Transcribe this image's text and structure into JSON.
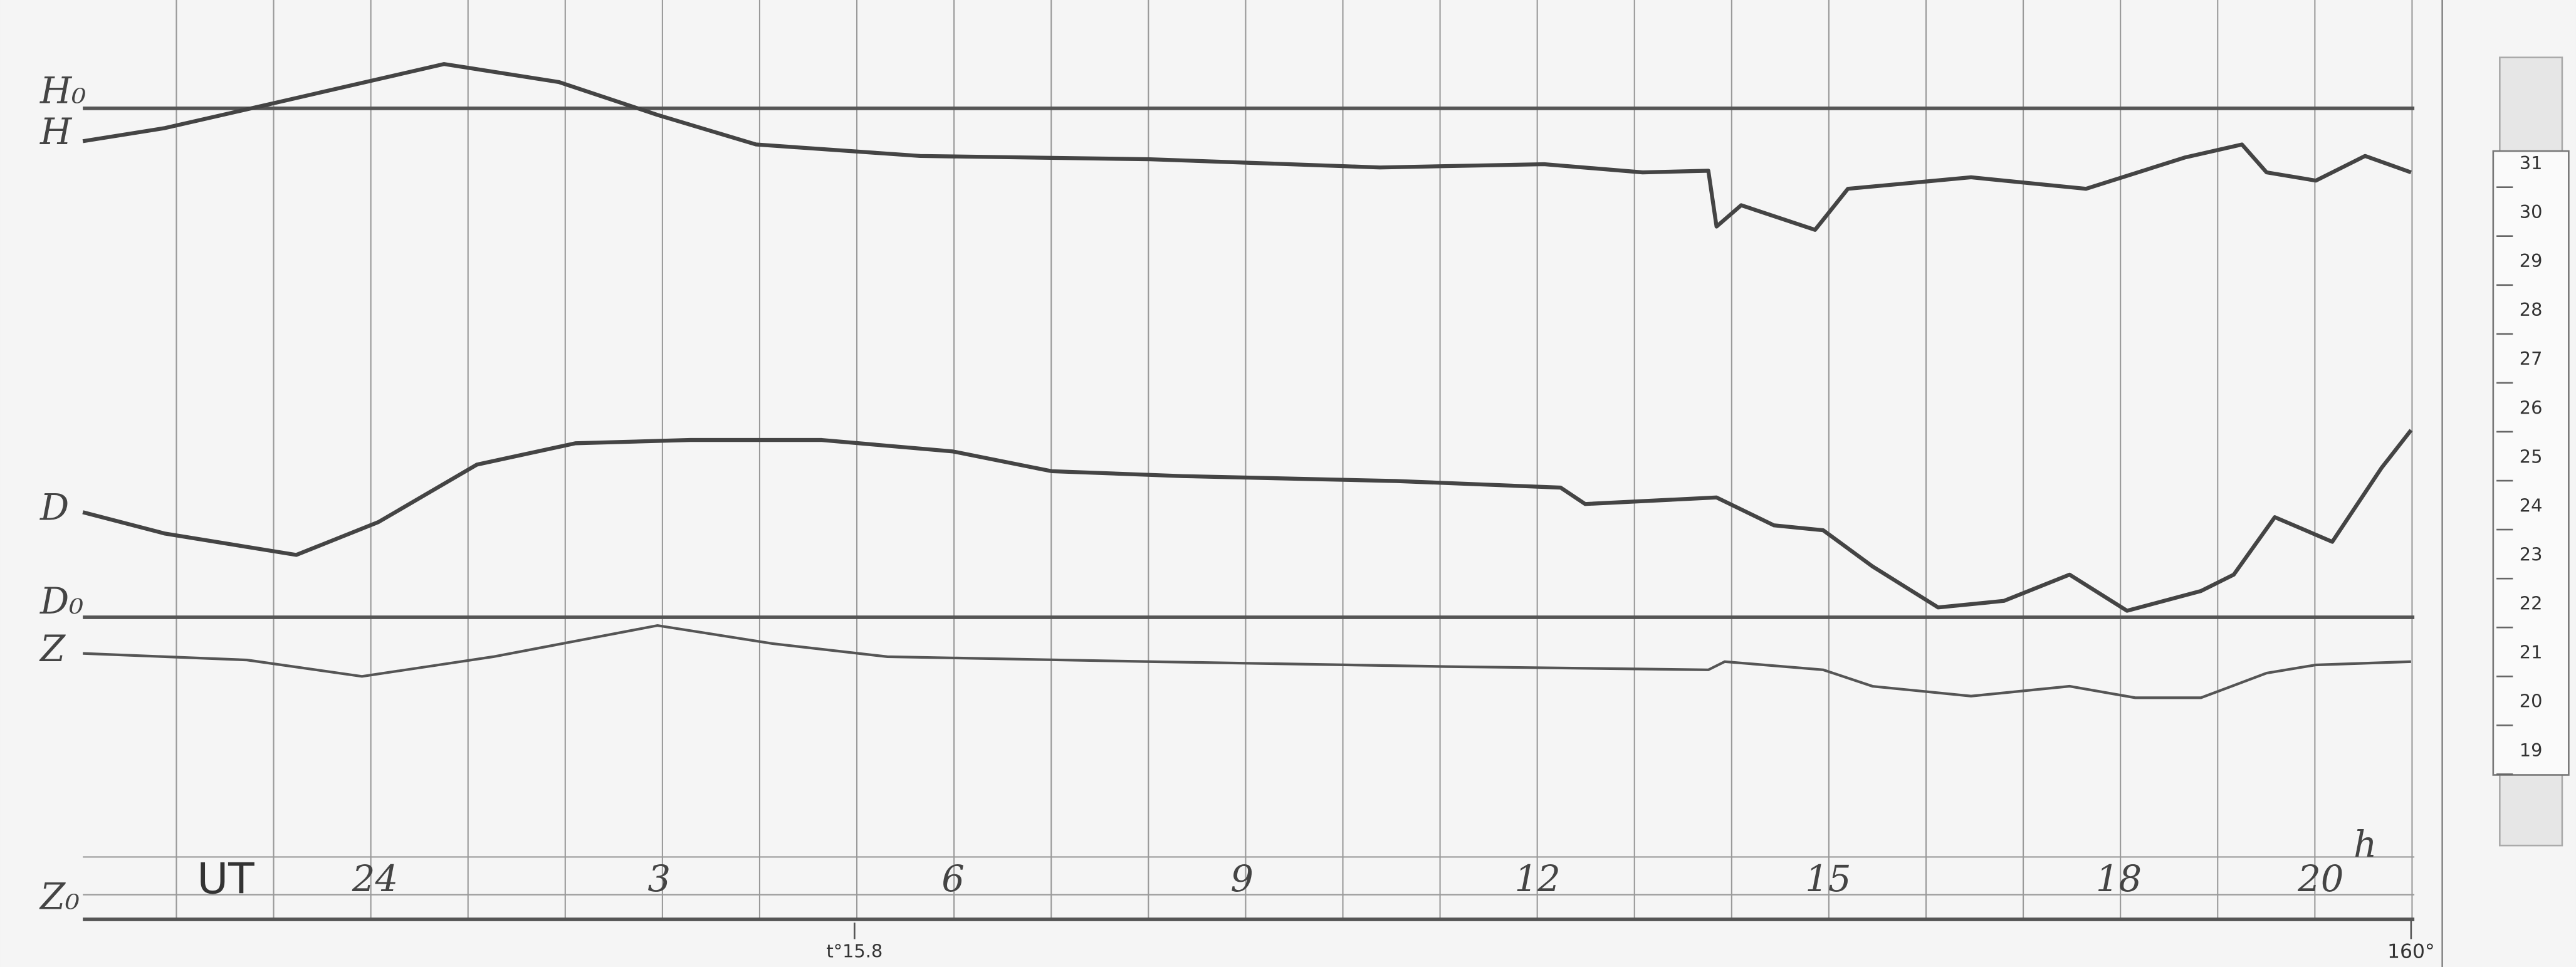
{
  "baseline_labels": [
    "H₀",
    "H",
    "D",
    "D₀",
    "Z",
    "Z₀"
  ],
  "time_axis": {
    "label": "UT",
    "hours": [
      "24",
      "3",
      "6",
      "9",
      "12",
      "15",
      "18",
      "20"
    ],
    "hour_unit": "h"
  },
  "annotations": {
    "temperature": "t°15.8",
    "end_mark": "160°"
  },
  "scale": [
    "31",
    "30",
    "29",
    "28",
    "27",
    "26",
    "25",
    "24",
    "23",
    "22",
    "21",
    "20",
    "19"
  ]
}
